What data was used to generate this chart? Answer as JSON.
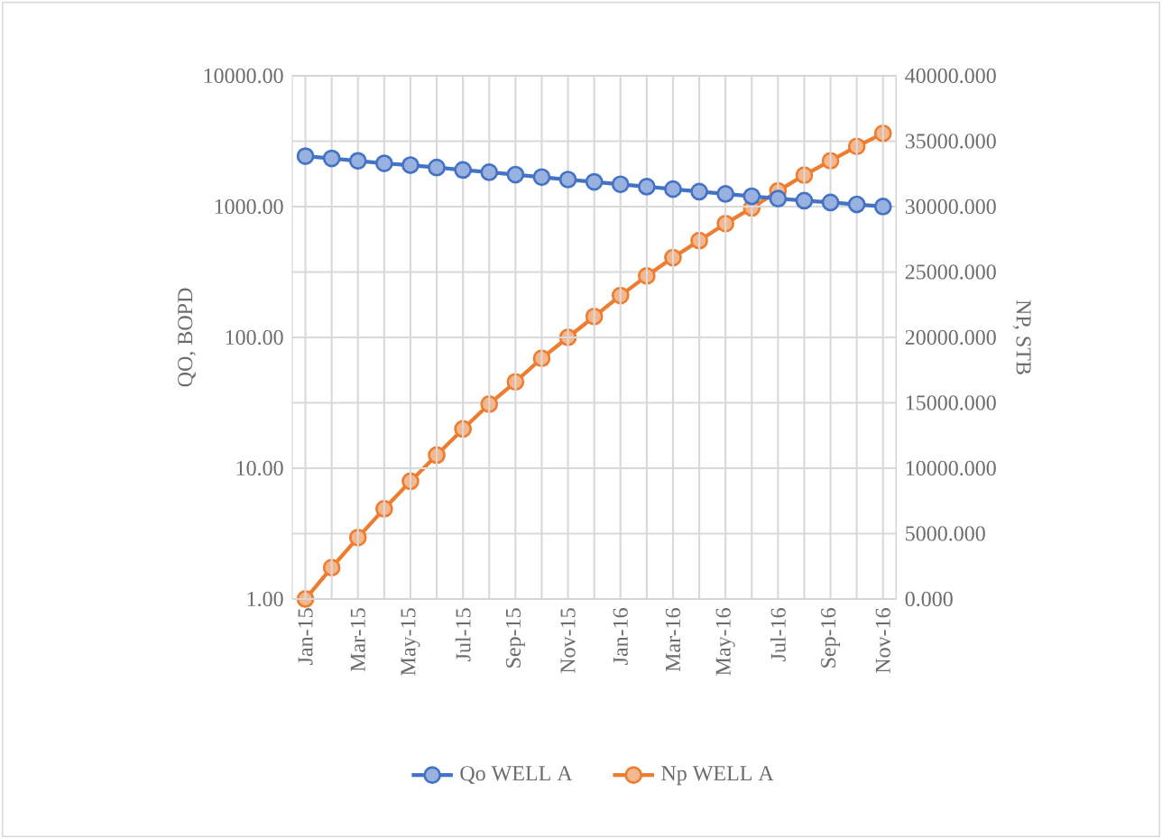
{
  "chart_data": {
    "type": "line",
    "categories": [
      "Jan-15",
      null,
      "Mar-15",
      null,
      "May-15",
      null,
      "Jul-15",
      null,
      "Sep-15",
      null,
      "Nov-15",
      null,
      "Jan-16",
      null,
      "Mar-16",
      null,
      "May-16",
      null,
      "Jul-16",
      null,
      "Sep-16",
      null,
      "Nov-16"
    ],
    "series": [
      {
        "name": "Qo WELL A",
        "color": "#4472c4",
        "values": [
          2430,
          2335,
          2235,
          2140,
          2075,
          1990,
          1905,
          1830,
          1755,
          1680,
          1610,
          1545,
          1480,
          1420,
          1360,
          1300,
          1250,
          1200,
          1150,
          1110,
          1075,
          1040,
          1000
        ]
      },
      {
        "name": "Np WELL A",
        "color": "#ed7d31",
        "axis": "y2",
        "values": [
          0,
          2400,
          4700,
          6900,
          9000,
          11000,
          13000,
          14900,
          16600,
          18400,
          20000,
          21600,
          23200,
          24700,
          26100,
          27400,
          28700,
          29900,
          31200,
          32400,
          33500,
          34600,
          35600
        ]
      }
    ],
    "ylabel": "QO, BOPD",
    "y2label": "NP, STB",
    "log": "y",
    "ylim": [
      1,
      10000
    ],
    "yticks": [
      {
        "value": 1,
        "label": "1.00"
      },
      {
        "value": 10,
        "label": "10.00"
      },
      {
        "value": 100,
        "label": "100.00"
      },
      {
        "value": 1000,
        "label": "1000.00"
      },
      {
        "value": 10000,
        "label": "10000.00"
      }
    ],
    "y2lim": [
      0,
      40000
    ],
    "y2ticks": [
      {
        "value": 0,
        "label": "0.000"
      },
      {
        "value": 5000,
        "label": "5000.000"
      },
      {
        "value": 10000,
        "label": "10000.000"
      },
      {
        "value": 15000,
        "label": "15000.000"
      },
      {
        "value": 20000,
        "label": "20000.000"
      },
      {
        "value": 25000,
        "label": "25000.000"
      },
      {
        "value": 30000,
        "label": "30000.000"
      },
      {
        "value": 35000,
        "label": "35000.000"
      },
      {
        "value": 40000,
        "label": "40000.000"
      }
    ],
    "grid": true,
    "legend": "bottom",
    "marker": "circle",
    "line_style": "solid"
  }
}
